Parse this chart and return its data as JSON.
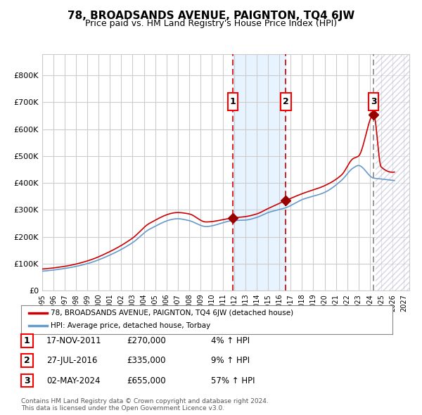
{
  "title": "78, BROADSANDS AVENUE, PAIGNTON, TQ4 6JW",
  "subtitle": "Price paid vs. HM Land Registry's House Price Index (HPI)",
  "xlim": [
    1995.0,
    2027.5
  ],
  "ylim": [
    0,
    880000
  ],
  "yticks": [
    0,
    100000,
    200000,
    300000,
    400000,
    500000,
    600000,
    700000,
    800000
  ],
  "ytick_labels": [
    "£0",
    "£100K",
    "£200K",
    "£300K",
    "£400K",
    "£500K",
    "£600K",
    "£700K",
    "£800K"
  ],
  "sale_dates": [
    2011.88,
    2016.57,
    2024.34
  ],
  "sale_prices": [
    270000,
    335000,
    655000
  ],
  "sale_labels": [
    "1",
    "2",
    "3"
  ],
  "red_line_color": "#cc0000",
  "blue_line_color": "#6699cc",
  "sale_marker_color": "#990000",
  "dashed_line_color": "#cc0000",
  "shade_color": "#ddeeff",
  "hatch_color": "#aaaacc",
  "legend_label_red": "78, BROADSANDS AVENUE, PAIGNTON, TQ4 6JW (detached house)",
  "legend_label_blue": "HPI: Average price, detached house, Torbay",
  "table_entries": [
    {
      "num": "1",
      "date": "17-NOV-2011",
      "price": "£270,000",
      "pct": "4% ↑ HPI"
    },
    {
      "num": "2",
      "date": "27-JUL-2016",
      "price": "£335,000",
      "pct": "9% ↑ HPI"
    },
    {
      "num": "3",
      "date": "02-MAY-2024",
      "price": "£655,000",
      "pct": "57% ↑ HPI"
    }
  ],
  "footnote": "Contains HM Land Registry data © Crown copyright and database right 2024.\nThis data is licensed under the Open Government Licence v3.0.",
  "background_color": "#ffffff",
  "grid_color": "#cccccc"
}
